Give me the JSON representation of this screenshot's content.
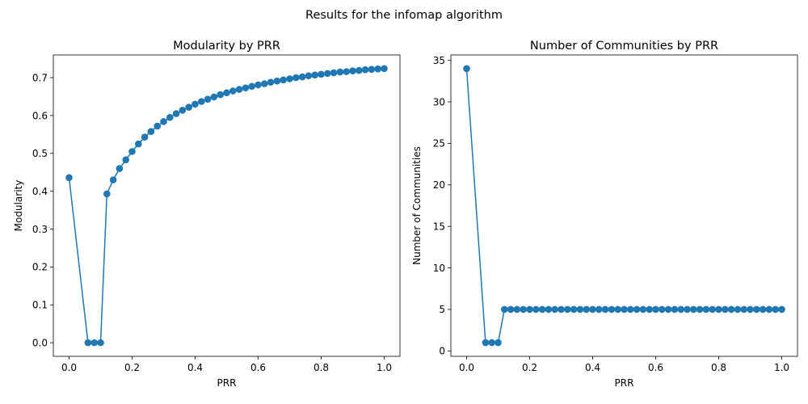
{
  "suptitle": "Results for the infomap algorithm",
  "chart_data": [
    {
      "type": "line",
      "markers": "circle",
      "title": "Modularity by PRR",
      "xlabel": "PRR",
      "ylabel": "Modularity",
      "xlim": [
        -0.05,
        1.05
      ],
      "ylim": [
        -0.036,
        0.76
      ],
      "xticks": [
        0.0,
        0.2,
        0.4,
        0.6,
        0.8,
        1.0
      ],
      "xtick_labels": [
        "0.0",
        "0.2",
        "0.4",
        "0.6",
        "0.8",
        "1.0"
      ],
      "yticks": [
        0.0,
        0.1,
        0.2,
        0.3,
        0.4,
        0.5,
        0.6,
        0.7
      ],
      "ytick_labels": [
        "0.0",
        "0.1",
        "0.2",
        "0.3",
        "0.4",
        "0.5",
        "0.6",
        "0.7"
      ],
      "color": "#1f77b4",
      "x": [
        0.0,
        0.06,
        0.08,
        0.1,
        0.12,
        0.14,
        0.16,
        0.18,
        0.2,
        0.22,
        0.24,
        0.26,
        0.28,
        0.3,
        0.32,
        0.34,
        0.36,
        0.38,
        0.4,
        0.42,
        0.44,
        0.46,
        0.48,
        0.5,
        0.52,
        0.54,
        0.56,
        0.58,
        0.6,
        0.62,
        0.64,
        0.66,
        0.68,
        0.7,
        0.72,
        0.74,
        0.76,
        0.78,
        0.8,
        0.82,
        0.84,
        0.86,
        0.88,
        0.9,
        0.92,
        0.94,
        0.96,
        0.98,
        1.0
      ],
      "y": [
        0.436,
        0.0,
        0.0,
        0.0,
        0.393,
        0.43,
        0.46,
        0.483,
        0.505,
        0.525,
        0.543,
        0.558,
        0.572,
        0.584,
        0.595,
        0.605,
        0.614,
        0.622,
        0.63,
        0.637,
        0.643,
        0.649,
        0.655,
        0.66,
        0.665,
        0.669,
        0.673,
        0.677,
        0.681,
        0.684,
        0.688,
        0.691,
        0.694,
        0.697,
        0.7,
        0.702,
        0.705,
        0.707,
        0.709,
        0.711,
        0.713,
        0.715,
        0.716,
        0.718,
        0.719,
        0.721,
        0.722,
        0.723,
        0.724
      ]
    },
    {
      "type": "line",
      "markers": "circle",
      "title": "Number of Communities by PRR",
      "xlabel": "PRR",
      "ylabel": "Number of Communities",
      "xlim": [
        -0.05,
        1.05
      ],
      "ylim": [
        -0.65,
        35.65
      ],
      "xticks": [
        0.0,
        0.2,
        0.4,
        0.6,
        0.8,
        1.0
      ],
      "xtick_labels": [
        "0.0",
        "0.2",
        "0.4",
        "0.6",
        "0.8",
        "1.0"
      ],
      "yticks": [
        0,
        5,
        10,
        15,
        20,
        25,
        30,
        35
      ],
      "ytick_labels": [
        "0",
        "5",
        "10",
        "15",
        "20",
        "25",
        "30",
        "35"
      ],
      "color": "#1f77b4",
      "x": [
        0.0,
        0.06,
        0.08,
        0.1,
        0.12,
        0.14,
        0.16,
        0.18,
        0.2,
        0.22,
        0.24,
        0.26,
        0.28,
        0.3,
        0.32,
        0.34,
        0.36,
        0.38,
        0.4,
        0.42,
        0.44,
        0.46,
        0.48,
        0.5,
        0.52,
        0.54,
        0.56,
        0.58,
        0.6,
        0.62,
        0.64,
        0.66,
        0.68,
        0.7,
        0.72,
        0.74,
        0.76,
        0.78,
        0.8,
        0.82,
        0.84,
        0.86,
        0.88,
        0.9,
        0.92,
        0.94,
        0.96,
        0.98,
        1.0
      ],
      "y": [
        34,
        1,
        1,
        1,
        5,
        5,
        5,
        5,
        5,
        5,
        5,
        5,
        5,
        5,
        5,
        5,
        5,
        5,
        5,
        5,
        5,
        5,
        5,
        5,
        5,
        5,
        5,
        5,
        5,
        5,
        5,
        5,
        5,
        5,
        5,
        5,
        5,
        5,
        5,
        5,
        5,
        5,
        5,
        5,
        5,
        5,
        5,
        5,
        5
      ]
    }
  ]
}
